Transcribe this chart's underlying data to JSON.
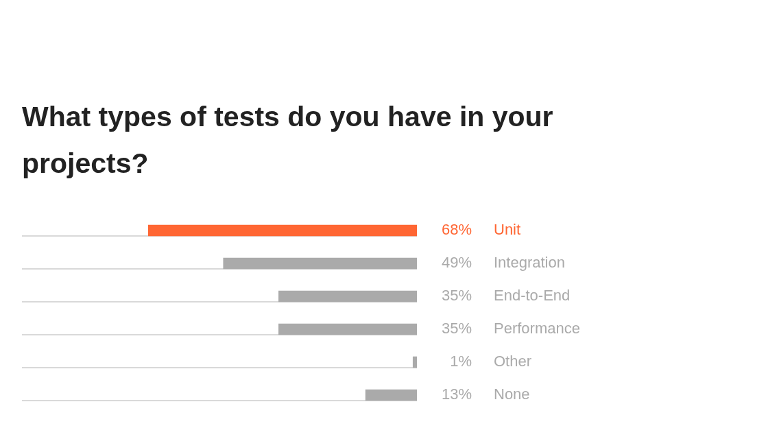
{
  "chart_data": {
    "type": "bar",
    "title": "What types of tests do you have in your projects?",
    "orientation": "horizontal",
    "categories": [
      "Unit",
      "Integration",
      "End-to-End",
      "Performance",
      "Other",
      "None"
    ],
    "values": [
      68,
      49,
      35,
      35,
      1,
      13
    ],
    "value_labels": [
      "68%",
      "49%",
      "35%",
      "35%",
      "1%",
      "13%"
    ],
    "colors": [
      "#ff6633",
      "#aaaaaa",
      "#aaaaaa",
      "#aaaaaa",
      "#aaaaaa",
      "#aaaaaa"
    ],
    "xlim": [
      100,
      0
    ],
    "tick_labels": false
  }
}
